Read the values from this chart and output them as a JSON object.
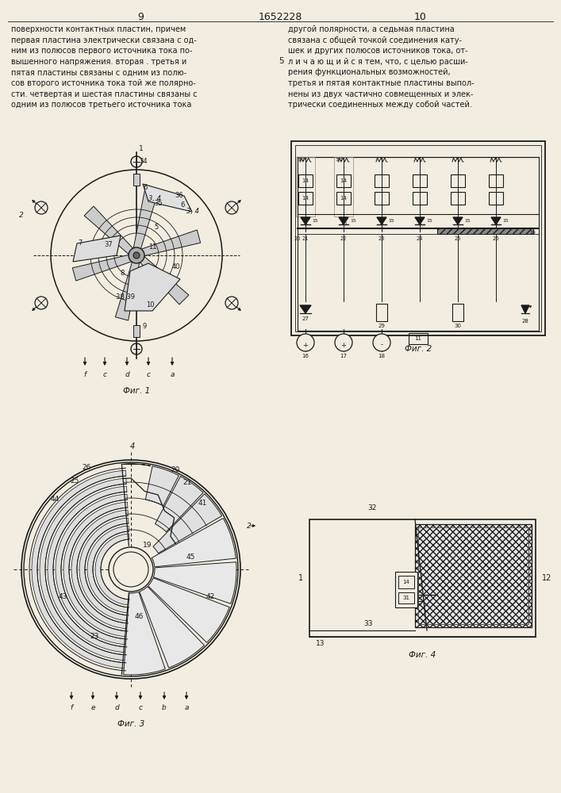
{
  "bg_color": "#f2ede0",
  "line_color": "#1a1a1a",
  "page_left": "9",
  "page_center": "1652228",
  "page_right": "10",
  "fig1_label": "Фиг. 1",
  "fig2_label": "Фиг. 2",
  "fig3_label": "Фиг. 3",
  "fig4_label": "Фиг. 4",
  "text_left": "поверхности контактных пластин, причем\nпервая пластина электрически связана с од-\nним из полюсов первого источника тока по-\nвышенного напряжения. вторая . третья и\nпятая пластины связаны с одним из полю-\nсов второго источника тока той же полярно-\nсти. четвертая и шестая пластины связаны с\nодним из полюсов третьего источника тока",
  "text_right": "другой полярности, а седьмая пластина\nсвязана с общей точкой соединения кату-\nшек и других полюсов источников тока, от-\nл и ч а ю щ и й с я тем, что, с целью расши-\nрения функциональных возможностей,\nтретья и пятая контактные пластины выпол-\nнены из двух частично совмещенных и элек-\nтрически соединенных между собой частей."
}
